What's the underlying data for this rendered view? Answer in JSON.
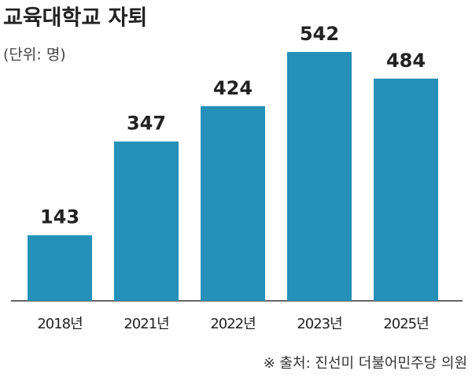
{
  "chart_data": {
    "type": "bar",
    "title": "교육대학교 자퇴",
    "subtitle": "(단위: 명)",
    "categories": [
      "2018년",
      "2021년",
      "2022년",
      "2023년",
      "2025년"
    ],
    "values": [
      143,
      347,
      424,
      542,
      484
    ],
    "color": "#2590b8",
    "source": "※ 출처: 진선미 더불어민주당 의원"
  }
}
